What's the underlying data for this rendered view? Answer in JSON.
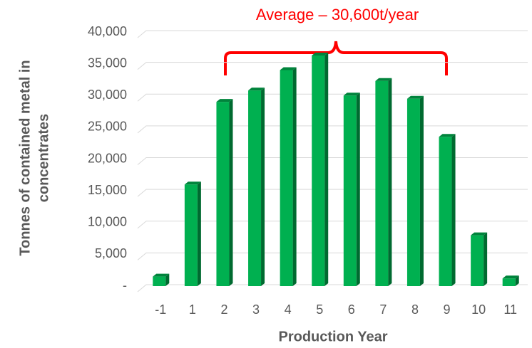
{
  "chart_data": {
    "type": "bar",
    "annotation": "Average – 30,600t/year",
    "annotation_color": "#ff0000",
    "x_label": "Production Year",
    "y_label": [
      "Tonnes of contained metal in",
      "concentrates"
    ],
    "categories": [
      "-1",
      "1",
      "2",
      "3",
      "4",
      "5",
      "6",
      "7",
      "8",
      "9",
      "10",
      "11"
    ],
    "values": [
      1500,
      16000,
      29000,
      30800,
      34000,
      36300,
      30000,
      32300,
      29500,
      23500,
      8000,
      1200
    ],
    "color": "#00b050",
    "ylim": [
      0,
      40000
    ],
    "yticks": [
      {
        "value": 0,
        "label": "-"
      },
      {
        "value": 5000,
        "label": "5,000"
      },
      {
        "value": 10000,
        "label": "10,000"
      },
      {
        "value": 15000,
        "label": "15,000"
      },
      {
        "value": 20000,
        "label": "20,000"
      },
      {
        "value": 25000,
        "label": "25,000"
      },
      {
        "value": 30000,
        "label": "30,000"
      },
      {
        "value": 35000,
        "label": "35,000"
      },
      {
        "value": 40000,
        "label": "40,000"
      }
    ],
    "grid": true
  }
}
